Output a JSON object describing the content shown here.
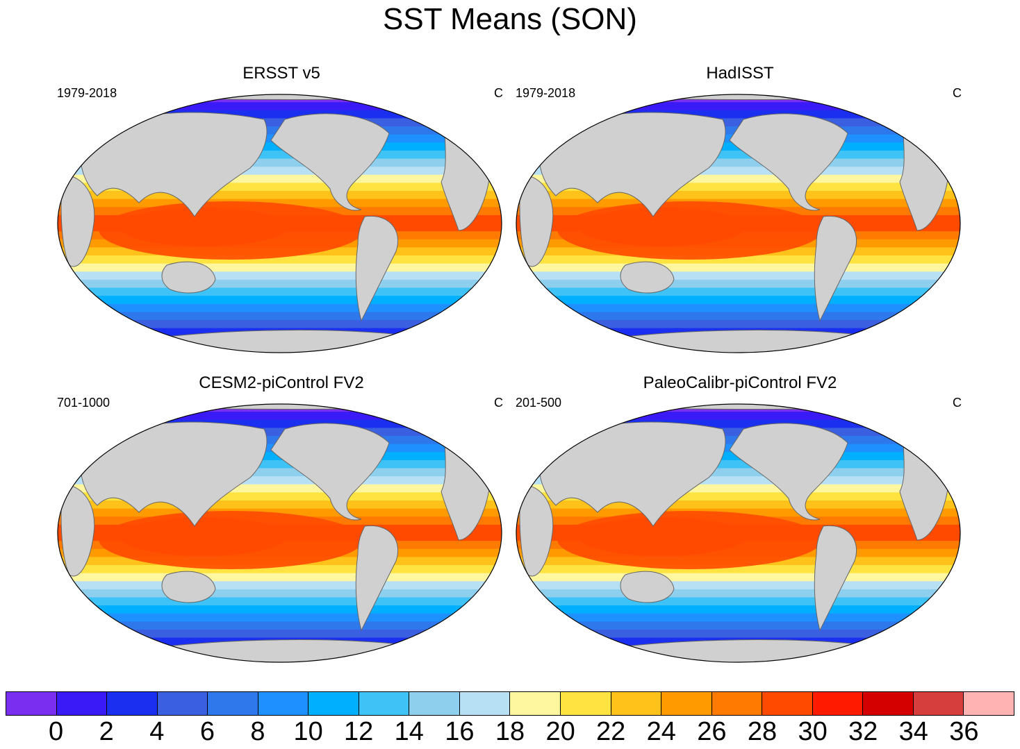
{
  "title": "SST Means (SON)",
  "panels": [
    {
      "title": "ERSST v5",
      "left_label": "1979-2018",
      "right_label": "C"
    },
    {
      "title": "HadISST",
      "left_label": "1979-2018",
      "right_label": "C"
    },
    {
      "title": "CESM2-piControl FV2",
      "left_label": "701-1000",
      "right_label": "C"
    },
    {
      "title": "PaleoCalibr-piControl FV2",
      "left_label": "201-500",
      "right_label": "C"
    }
  ],
  "colorbar": {
    "colors": [
      "#7a2ef0",
      "#3a1bf7",
      "#1a2ff0",
      "#3a5fe0",
      "#2f78ec",
      "#1e90ff",
      "#00b0ff",
      "#3fc2f5",
      "#8fcfee",
      "#b8e0f4",
      "#fff7a0",
      "#ffe340",
      "#ffc21a",
      "#ff9a00",
      "#ff7a00",
      "#ff4a00",
      "#ff1a00",
      "#d40000",
      "#d63d3d",
      "#ffb3b3"
    ],
    "labels": [
      "0",
      "2",
      "4",
      "6",
      "8",
      "10",
      "12",
      "14",
      "16",
      "18",
      "20",
      "22",
      "24",
      "26",
      "28",
      "30",
      "32",
      "34",
      "36"
    ],
    "units": "C"
  },
  "chart_data": {
    "type": "heatmap",
    "title": "SST Means (SON)",
    "contour_levels": [
      0,
      2,
      4,
      6,
      8,
      10,
      12,
      14,
      16,
      18,
      20,
      22,
      24,
      26,
      28,
      30,
      32,
      34,
      36
    ],
    "panels": [
      "ERSST v5",
      "HadISST",
      "CESM2-piControl FV2",
      "PaleoCalibr-piControl FV2"
    ]
  }
}
